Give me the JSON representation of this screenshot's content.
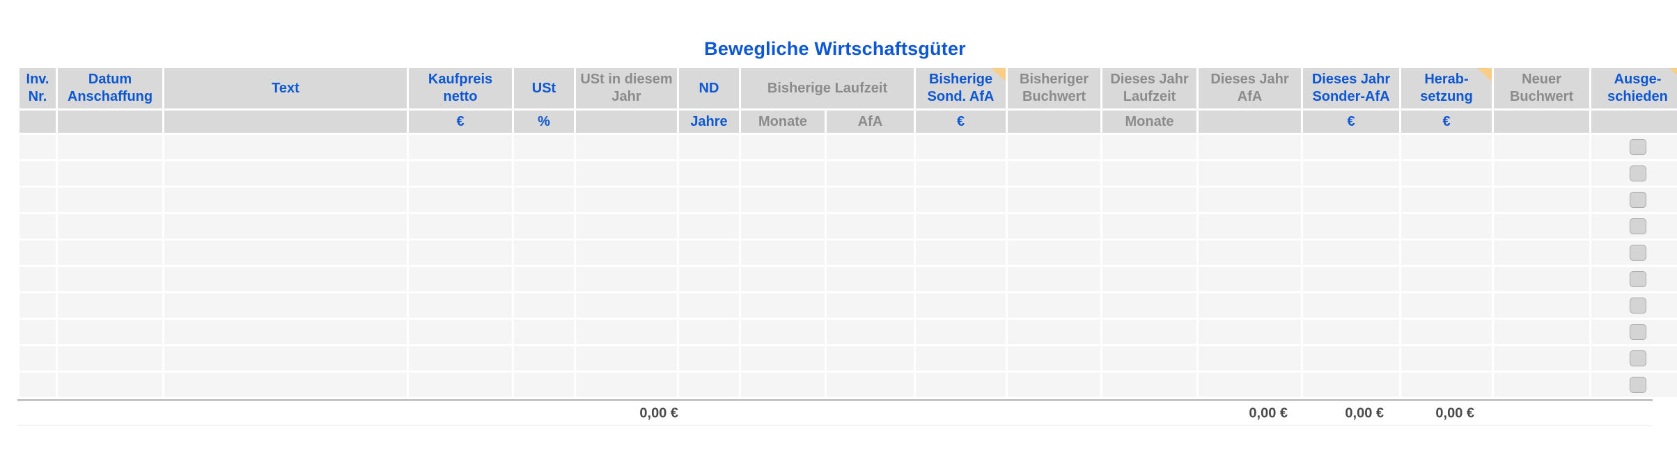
{
  "title": "Bewegliche Wirtschaftsgüter",
  "colors": {
    "accent_blue": "#0d57d2",
    "secondary_gray_text": "#8b8b8b",
    "header_background": "#d9d9d9",
    "row_background": "#f5f5f5",
    "comment_marker_orange": "#f9cd87",
    "totals_border_gray": "#c3c3c3",
    "totals_text": "#4a4a4a",
    "checkbox_fill": "#d4d4d4",
    "checkbox_border": "#a9a9a9"
  },
  "table": {
    "empty_row_count": 10,
    "group": {
      "label": "Bisherige Laufzeit",
      "label_color": "gray"
    },
    "columns": [
      {
        "id": "inv_nr",
        "label": "Inv. Nr.",
        "label_color": "blue",
        "unit": "",
        "unit_color": "",
        "comment_marker": false
      },
      {
        "id": "datum_anschaffung",
        "label": "Datum Anschaffung",
        "label_color": "blue",
        "unit": "",
        "unit_color": "",
        "comment_marker": false
      },
      {
        "id": "text",
        "label": "Text",
        "label_color": "blue",
        "unit": "",
        "unit_color": "",
        "comment_marker": false
      },
      {
        "id": "kaufpreis_netto",
        "label": "Kaufpreis netto",
        "label_color": "blue",
        "unit": "€",
        "unit_color": "blue",
        "comment_marker": false
      },
      {
        "id": "ust",
        "label": "USt",
        "label_color": "blue",
        "unit": "%",
        "unit_color": "blue",
        "comment_marker": false
      },
      {
        "id": "ust_in_diesem_jahr",
        "label": "USt in diesem Jahr",
        "label_color": "gray",
        "unit": "",
        "unit_color": "",
        "comment_marker": false
      },
      {
        "id": "nd",
        "label": "ND",
        "label_color": "blue",
        "unit": "Jahre",
        "unit_color": "blue",
        "comment_marker": false
      },
      {
        "id": "bisherige_monate",
        "label": "",
        "label_color": "gray",
        "unit": "Monate",
        "unit_color": "gray",
        "comment_marker": false
      },
      {
        "id": "bisherige_afa",
        "label": "",
        "label_color": "gray",
        "unit": "AfA",
        "unit_color": "gray",
        "comment_marker": false
      },
      {
        "id": "bisherige_sond_afa",
        "label": "Bisherige Sond. AfA",
        "label_color": "blue",
        "unit": "€",
        "unit_color": "blue",
        "comment_marker": true
      },
      {
        "id": "bisheriger_buchwert",
        "label": "Bisheriger Buchwert",
        "label_color": "gray",
        "unit": "",
        "unit_color": "",
        "comment_marker": false
      },
      {
        "id": "dieses_jahr_laufzeit",
        "label": "Dieses Jahr Laufzeit",
        "label_color": "gray",
        "unit": "Monate",
        "unit_color": "gray",
        "comment_marker": false
      },
      {
        "id": "dieses_jahr_afa",
        "label": "Dieses Jahr AfA",
        "label_color": "gray",
        "unit": "",
        "unit_color": "",
        "comment_marker": false
      },
      {
        "id": "dieses_jahr_sonder_afa",
        "label": "Dieses Jahr Sonder-AfA",
        "label_color": "blue",
        "unit": "€",
        "unit_color": "blue",
        "comment_marker": false
      },
      {
        "id": "herabsetzung",
        "label": "Herab-setzung",
        "label_color": "blue",
        "unit": "€",
        "unit_color": "blue",
        "comment_marker": true
      },
      {
        "id": "neuer_buchwert",
        "label": "Neuer Buchwert",
        "label_color": "gray",
        "unit": "",
        "unit_color": "",
        "comment_marker": false
      },
      {
        "id": "ausgeschieden",
        "label": "Ausge-schieden",
        "label_color": "blue",
        "unit": "",
        "unit_color": "",
        "comment_marker": true
      }
    ],
    "totals": {
      "ust_in_diesem_jahr": "0,00 €",
      "dieses_jahr_afa": "0,00 €",
      "dieses_jahr_sonder_afa": "0,00 €",
      "herabsetzung": "0,00 €"
    }
  }
}
